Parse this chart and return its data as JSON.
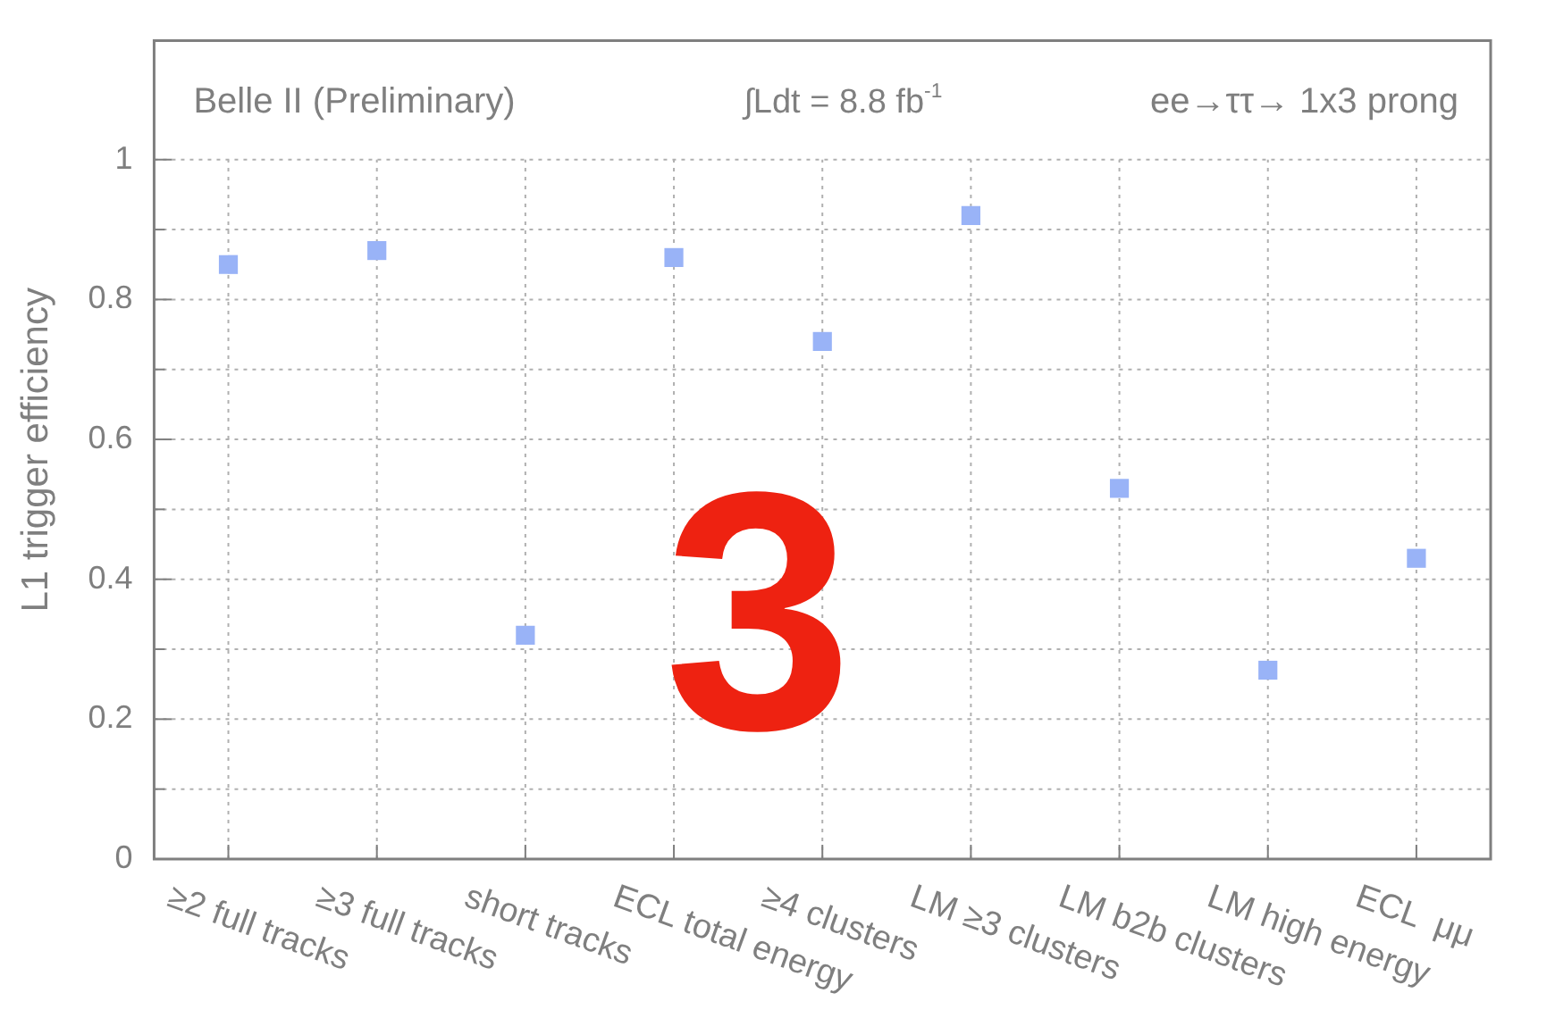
{
  "chart_data": {
    "type": "scatter",
    "ylabel": "L1 trigger efficiency",
    "categories": [
      "≥2 full tracks",
      "≥3 full tracks",
      "short tracks",
      "ECL total energy",
      "≥4 clusters",
      "LM ≥3 clusters",
      "LM b2b clusters",
      "LM high energy",
      "ECL  μμ"
    ],
    "series": [
      {
        "color": "#99b3f7",
        "values": [
          0.85,
          0.87,
          0.32,
          0.86,
          0.74,
          0.92,
          0.53,
          0.27,
          0.43
        ]
      }
    ],
    "ylim": [
      0,
      1.17
    ],
    "yticks": [
      0,
      {
        "value": 0.1,
        "label": null
      },
      0.2,
      {
        "value": 0.3,
        "label": null
      },
      0.4,
      {
        "value": 0.5,
        "label": null
      },
      0.6,
      {
        "value": 0.7,
        "label": null
      },
      0.8,
      {
        "value": 0.9,
        "label": null
      },
      1
    ],
    "grid": true,
    "marker": "square",
    "legend": false,
    "annotations": [
      "Belle II (Preliminary)",
      "∫Ldt = 8.8 fb$^{-1}$",
      "ee→ττ→ 1x3 prong",
      "3"
    ]
  }
}
